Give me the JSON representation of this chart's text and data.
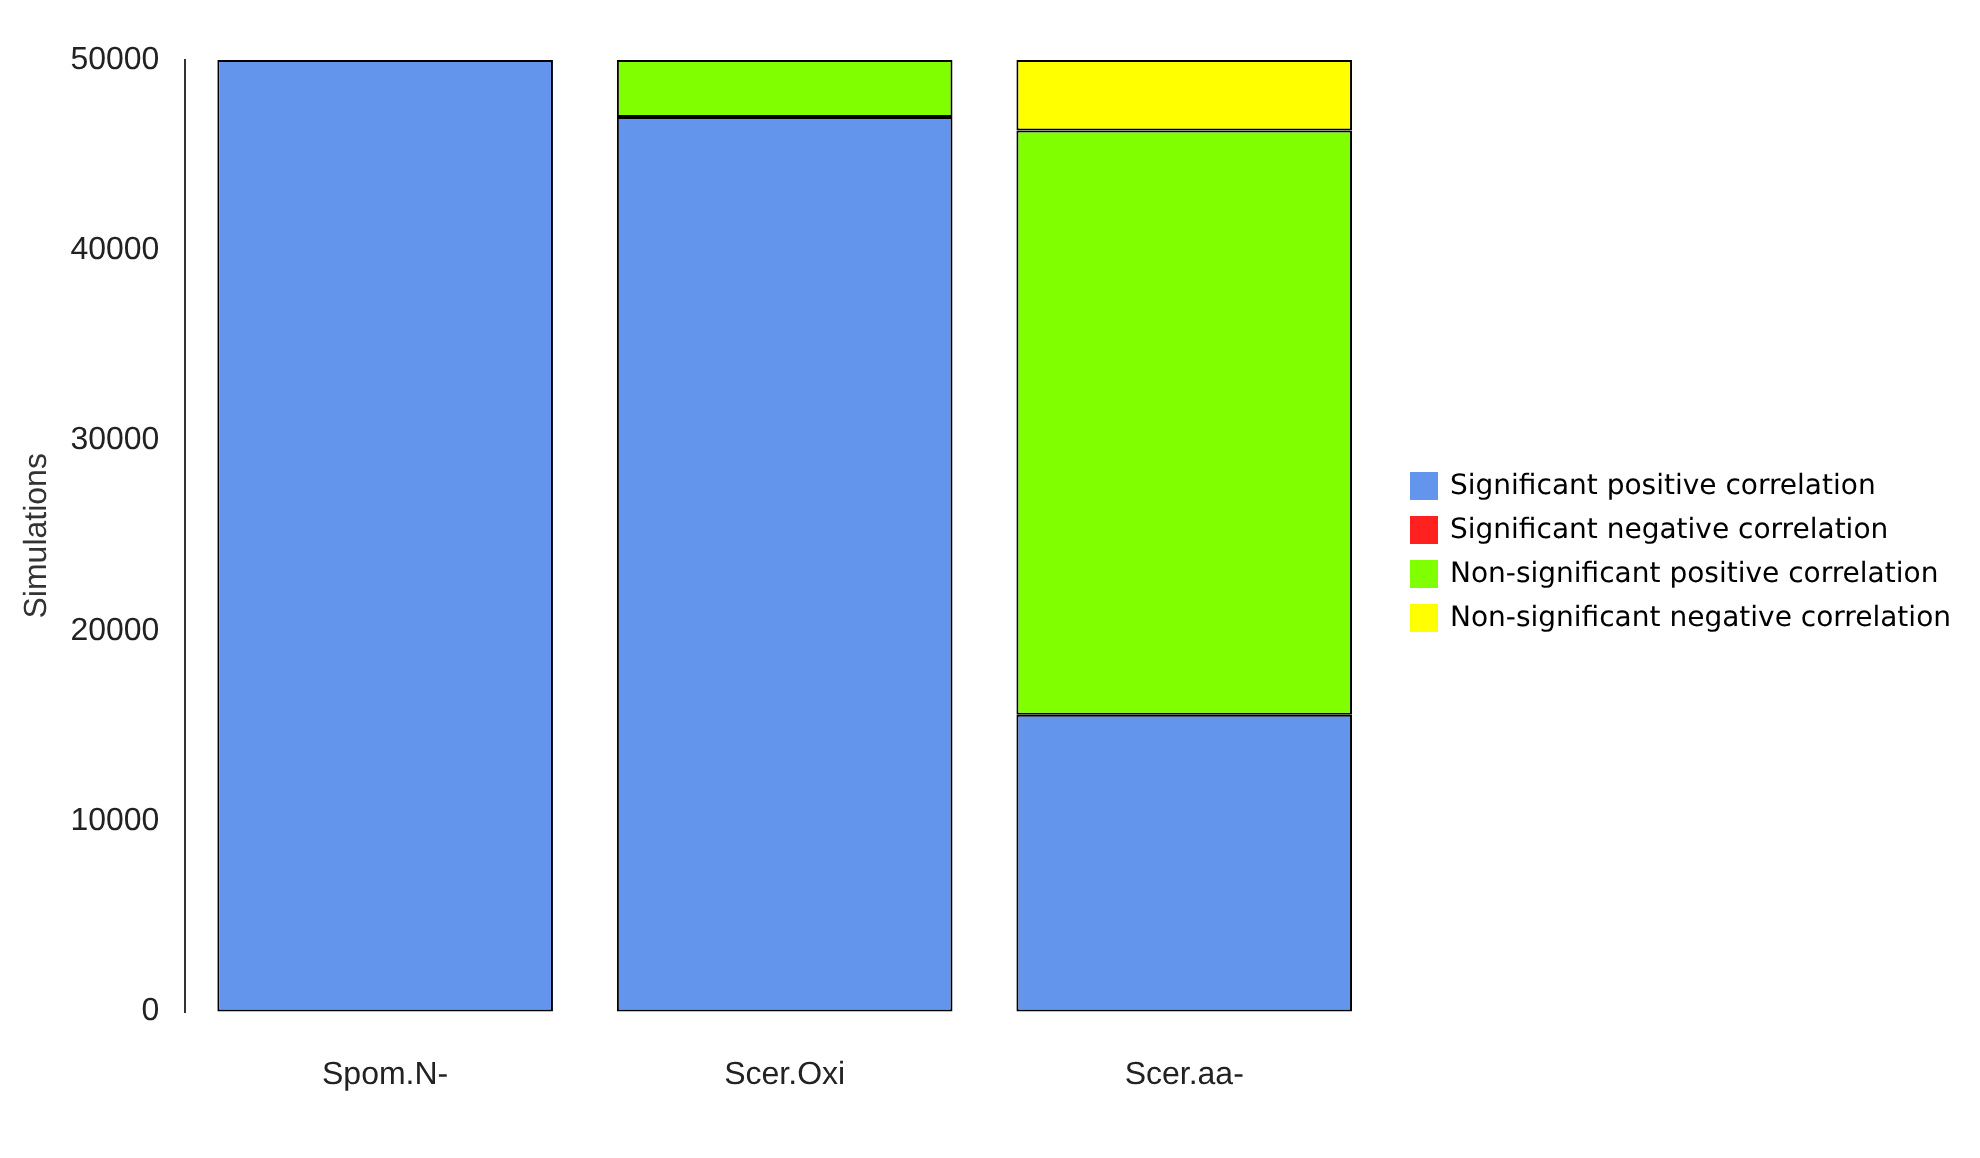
{
  "chart_data": {
    "type": "bar",
    "stacked": true,
    "ylabel": "Simulations",
    "categories": [
      "Spom.N-",
      "Scer.Oxi",
      "Scer.aa-"
    ],
    "series": [
      {
        "name": "Significant positive correlation",
        "color": "#6495ed",
        "values": [
          50000,
          47000,
          15600
        ]
      },
      {
        "name": "Significant negative correlation",
        "color": "#ff2020",
        "values": [
          0,
          0,
          0
        ]
      },
      {
        "name": "Non-significant positive correlation",
        "color": "#7fff00",
        "values": [
          0,
          3000,
          30700
        ]
      },
      {
        "name": "Non-significant negative correlation",
        "color": "#ffff00",
        "values": [
          0,
          0,
          3700
        ]
      }
    ],
    "ylim": [
      0,
      50000
    ],
    "yticks": [
      0,
      10000,
      20000,
      30000,
      40000,
      50000
    ],
    "grid": false,
    "legend": "right"
  }
}
